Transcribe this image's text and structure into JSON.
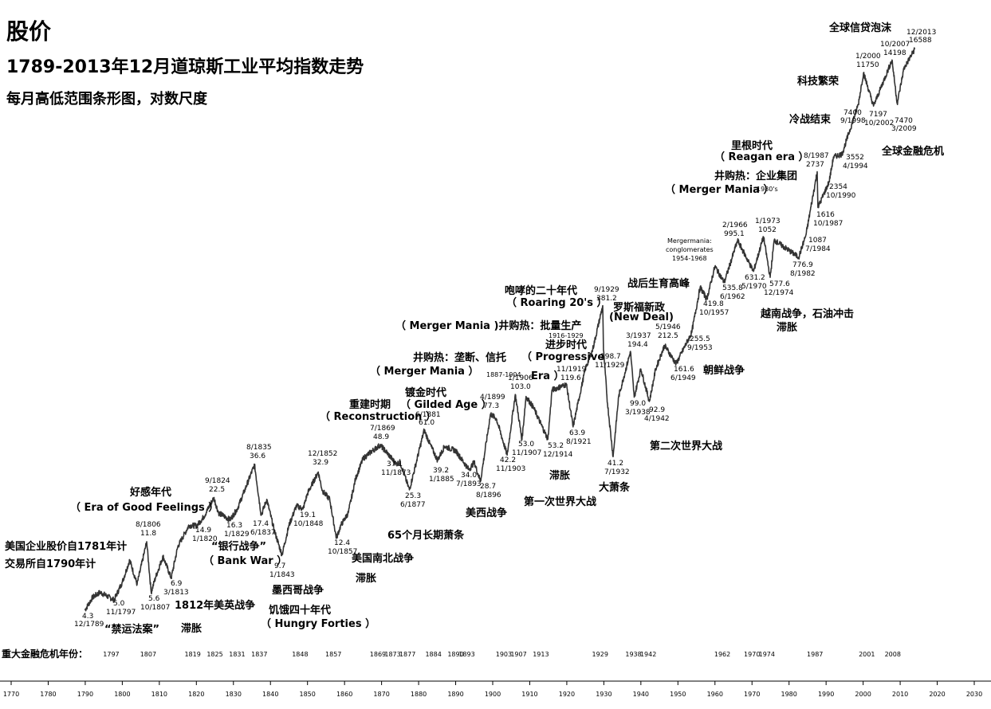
{
  "title": "股价",
  "subtitle": "1789-2013年12月道琼斯工业平均指数走势",
  "subtitle2": "每月高低范围条形图，对数尺度",
  "crisis_label": "重大金融危机年份：",
  "crisis_years": [
    "1797",
    "1807",
    "1819",
    "1825",
    "1831",
    "1837",
    "1848",
    "1857",
    "1869",
    "1873",
    "1877",
    "1884",
    "1890",
    "1893",
    "1903",
    "1907",
    "1913",
    "1929",
    "1938",
    "1942",
    "1962",
    "1970",
    "1974",
    "1987",
    "2001",
    "2008"
  ],
  "chart_data": {
    "type": "line",
    "scale": "log",
    "color": "#333333",
    "xlim": [
      1770,
      2030
    ],
    "xticks": [
      "1770",
      "1780",
      "1790",
      "1800",
      "1810",
      "1820",
      "1830",
      "1840",
      "1850",
      "1860",
      "1870",
      "1880",
      "1890",
      "1900",
      "1910",
      "1920",
      "1930",
      "1940",
      "1950",
      "1960",
      "1970",
      "1980",
      "1990",
      "2000",
      "2010",
      "2020",
      "2030"
    ],
    "series": [
      {
        "values": [
          [
            1789.9,
            4.3
          ],
          [
            1792,
            5.2
          ],
          [
            1794,
            5.6
          ],
          [
            1797.8,
            5.0
          ],
          [
            1800,
            6.5
          ],
          [
            1802,
            9.0
          ],
          [
            1804,
            6.3
          ],
          [
            1806.6,
            11.8
          ],
          [
            1807.8,
            5.6
          ],
          [
            1809,
            7.0
          ],
          [
            1811,
            9.5
          ],
          [
            1813.2,
            6.9
          ],
          [
            1815,
            11.0
          ],
          [
            1817,
            13.5
          ],
          [
            1818,
            15.0
          ],
          [
            1820.1,
            14.9
          ],
          [
            1822,
            17.0
          ],
          [
            1824.7,
            22.5
          ],
          [
            1826,
            18.0
          ],
          [
            1829.1,
            16.3
          ],
          [
            1831,
            19.0
          ],
          [
            1833,
            25.0
          ],
          [
            1835.7,
            36.6
          ],
          [
            1837.5,
            17.4
          ],
          [
            1839,
            22.0
          ],
          [
            1841,
            14.0
          ],
          [
            1843.1,
            9.7
          ],
          [
            1845,
            15.0
          ],
          [
            1847,
            20.0
          ],
          [
            1848.8,
            19.1
          ],
          [
            1850,
            24.0
          ],
          [
            1852.9,
            32.9
          ],
          [
            1854,
            25.0
          ],
          [
            1856,
            22.0
          ],
          [
            1857.8,
            12.4
          ],
          [
            1859,
            15.0
          ],
          [
            1861,
            18.0
          ],
          [
            1863,
            30.0
          ],
          [
            1865,
            40.0
          ],
          [
            1867,
            44.0
          ],
          [
            1869.6,
            48.9
          ],
          [
            1871,
            45.0
          ],
          [
            1873.9,
            37.1
          ],
          [
            1875,
            38.0
          ],
          [
            1877.5,
            25.3
          ],
          [
            1879,
            35.0
          ],
          [
            1881.5,
            61.0
          ],
          [
            1883,
            50.0
          ],
          [
            1885.1,
            39.2
          ],
          [
            1887,
            48.0
          ],
          [
            1890,
            45.0
          ],
          [
            1893.6,
            34.0
          ],
          [
            1895,
            38.0
          ],
          [
            1896.7,
            28.7
          ],
          [
            1899.4,
            77.3
          ],
          [
            1901,
            72.0
          ],
          [
            1903.9,
            42.2
          ],
          [
            1906.1,
            103.0
          ],
          [
            1907.9,
            53.0
          ],
          [
            1909,
            100.0
          ],
          [
            1911,
            85.0
          ],
          [
            1914.9,
            53.2
          ],
          [
            1916,
            110.0
          ],
          [
            1919.9,
            119.6
          ],
          [
            1921.7,
            63.9
          ],
          [
            1923,
            90.0
          ],
          [
            1925,
            150.0
          ],
          [
            1927,
            200.0
          ],
          [
            1929.7,
            381.2
          ],
          [
            1929.9,
            198.7
          ],
          [
            1931,
            90.0
          ],
          [
            1932.5,
            41.2
          ],
          [
            1934,
            100.0
          ],
          [
            1937.2,
            194.4
          ],
          [
            1938.2,
            99.0
          ],
          [
            1940,
            150.0
          ],
          [
            1942.3,
            92.9
          ],
          [
            1944,
            150.0
          ],
          [
            1946.4,
            212.5
          ],
          [
            1949.5,
            161.6
          ],
          [
            1953.7,
            255.5
          ],
          [
            1956,
            500.0
          ],
          [
            1957.8,
            419.8
          ],
          [
            1960,
            680.0
          ],
          [
            1962.5,
            535.8
          ],
          [
            1966.1,
            995.1
          ],
          [
            1970.4,
            631.2
          ],
          [
            1973.1,
            1052.0
          ],
          [
            1974.9,
            577.6
          ],
          [
            1976,
            1000.0
          ],
          [
            1982.6,
            776.9
          ],
          [
            1984.6,
            1087.0
          ],
          [
            1987.6,
            2737.0
          ],
          [
            1987.8,
            1616.0
          ],
          [
            1990.8,
            2354.0
          ],
          [
            1992,
            3400.0
          ],
          [
            1994.3,
            3552.0
          ],
          [
            1998.7,
            7400.0
          ],
          [
            2000.1,
            11750.0
          ],
          [
            2002.8,
            7197.0
          ],
          [
            2007.8,
            14198.0
          ],
          [
            2009.2,
            7470.0
          ],
          [
            2011,
            12500.0
          ],
          [
            2013.9,
            16588.0
          ]
        ]
      }
    ],
    "annotations": {
      "lbl_1789": [
        "4.3",
        "12/1789"
      ],
      "lbl_1797": [
        "5.0",
        "11/1797"
      ],
      "lbl_1806": [
        "8/1806",
        "11.8"
      ],
      "lbl_1807": [
        "5.6",
        "10/1807"
      ],
      "lbl_1813": [
        "6.9",
        "3/1813"
      ],
      "lbl_1820": [
        "14.9",
        "1/1820"
      ],
      "lbl_1824": [
        "9/1824",
        "22.5"
      ],
      "lbl_1829": [
        "16.3",
        "1/1829"
      ],
      "lbl_1835": [
        "8/1835",
        "36.6"
      ],
      "lbl_1837": [
        "17.4",
        "6/1837"
      ],
      "lbl_1843": [
        "9.7",
        "1/1843"
      ],
      "lbl_1848": [
        "19.1",
        "10/1848"
      ],
      "lbl_1852": [
        "12/1852",
        "32.9"
      ],
      "lbl_1857": [
        "12.4",
        "10/1857"
      ],
      "lbl_1869": [
        "7/1869",
        "48.9"
      ],
      "lbl_1873": [
        "37.1",
        "11/1873"
      ],
      "lbl_1877": [
        "25.3",
        "6/1877"
      ],
      "lbl_1881": [
        "6/1881",
        "61.0"
      ],
      "lbl_1885": [
        "39.2",
        "1/1885"
      ],
      "lbl_1893": [
        "34.0",
        "7/1893"
      ],
      "lbl_1896": [
        "28.7",
        "8/1896"
      ],
      "lbl_1899": [
        "4/1899",
        "77.3"
      ],
      "lbl_1903": [
        "42.2",
        "11/1903"
      ],
      "lbl_1906": [
        "1/1906",
        "103.0"
      ],
      "lbl_1907": [
        "53.0",
        "11/1907"
      ],
      "lbl_1914": [
        "53.2",
        "12/1914"
      ],
      "lbl_1919": [
        "11/1919",
        "119.6"
      ],
      "lbl_1921": [
        "63.9",
        "8/1921"
      ],
      "lbl_1929": [
        "9/1929",
        "381.2"
      ],
      "lbl_1929b": [
        "198.7",
        "11/1929"
      ],
      "lbl_1932": [
        "41.2",
        "7/1932"
      ],
      "lbl_1937": [
        "3/1937",
        "194.4"
      ],
      "lbl_1938": [
        "99.0",
        "3/1938"
      ],
      "lbl_1942": [
        "92.9",
        "4/1942"
      ],
      "lbl_1946": [
        "5/1946",
        "212.5"
      ],
      "lbl_1949": [
        "161.6",
        "6/1949"
      ],
      "lbl_1953": [
        "255.5",
        "9/1953"
      ],
      "lbl_1957": [
        "419.8",
        "10/1957"
      ],
      "lbl_1962": [
        "535.8",
        "6/1962"
      ],
      "lbl_1966": [
        "2/1966",
        "995.1"
      ],
      "lbl_1970": [
        "631.2",
        "5/1970"
      ],
      "lbl_1973": [
        "1/1973",
        "1052"
      ],
      "lbl_1974": [
        "577.6",
        "12/1974"
      ],
      "lbl_1982": [
        "776.9",
        "8/1982"
      ],
      "lbl_1984": [
        "1087",
        "7/1984"
      ],
      "lbl_1987": [
        "8/1987",
        "2737"
      ],
      "lbl_1987b": [
        "1616",
        "10/1987"
      ],
      "lbl_1990": [
        "2354",
        "10/1990"
      ],
      "lbl_1994": [
        "3552",
        "4/1994"
      ],
      "lbl_1998": [
        "7400",
        "9/1998"
      ],
      "lbl_2000": [
        "1/2000",
        "11750"
      ],
      "lbl_2002": [
        "7197",
        "10/2002"
      ],
      "lbl_2007": [
        "10/2007",
        "14198"
      ],
      "lbl_2009": [
        "7470",
        "3/2009"
      ],
      "lbl_2013": [
        "12/2013",
        "16588"
      ],
      "mergermania": [
        "Mergermania:",
        "conglomerates",
        "1954-1968"
      ],
      "y1887": "1887-1904",
      "y1916": "1916-1929",
      "y1980": "1980's"
    },
    "events": {
      "e_haogan": "好感年代",
      "e_haogan_en": "（ Era of Good Feelings ）",
      "e_us_stock": "美国企业股价自1781年计",
      "e_exchange": "交易所自1790年计",
      "e_embargo": "“禁运法案”",
      "e_stag1": "滞胀",
      "e_1812": "1812年美英战争",
      "e_bank": "“银行战争”",
      "e_bank_en": "（ Bank War ）",
      "e_mexico": "墨西哥战争",
      "e_hungry": "饥饿四十年代",
      "e_hungry_en": "（ Hungry Forties ）",
      "e_civil": "美国南北战争",
      "e_stag2": "滞胀",
      "e_recon": "重建时期",
      "e_recon_en": "（ Reconstruction ）",
      "e_65": "65个月长期萧条",
      "e_gilded": "镀金时代",
      "e_gilded_en": "（ Gilded Age ）",
      "e_merger1": "井购热：垄断、信托",
      "e_merger1_en": "（ Merger Mania ）",
      "e_spanish": "美西战争",
      "e_merger2": "（ Merger Mania )井购热：批量生产",
      "e_progressive": "进步时代",
      "e_progressive_en": "（ Progressive",
      "e_era": "Era ）",
      "e_stag3": "滞胀",
      "e_ww1": "第一次世界大战",
      "e_roaring": "咆哮的二十年代",
      "e_roaring_en": "（ Roaring 20's ）",
      "e_depression": "大萧条",
      "e_newdeal": "罗斯福新政",
      "e_newdeal_en": "(New Deal)",
      "e_boom": "战后生育高峰",
      "e_korea": "朝鲜战争",
      "e_ww2": "第二次世界大战",
      "e_vietnam": "越南战争，石油冲击",
      "e_stag4": "滞胀",
      "e_reagan": "里根时代",
      "e_reagan_en": "（ Reagan era ）",
      "e_merger3": "井购热：企业集团",
      "e_merger3_en": "（ Merger Mania ）",
      "e_coldwar": "冷战结束",
      "e_tech": "科技繁荣",
      "e_bubble": "全球信贷泡沫",
      "e_crisis": "全球金融危机"
    }
  }
}
